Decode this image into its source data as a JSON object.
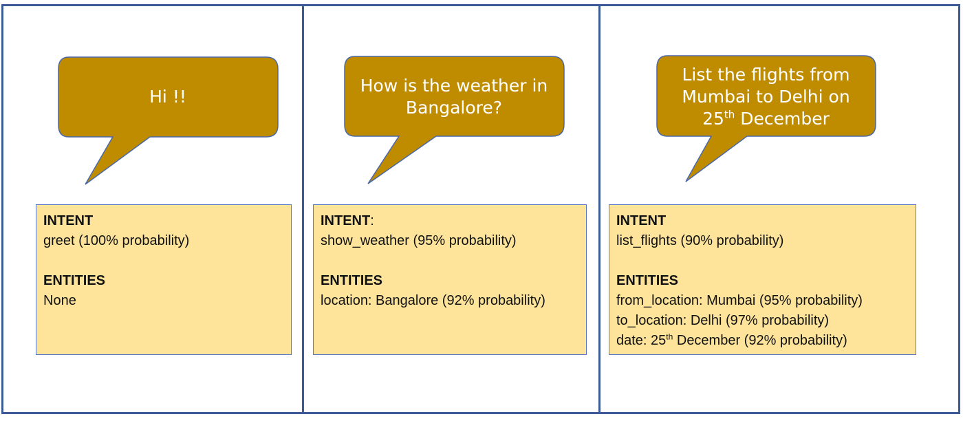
{
  "colors": {
    "panel_border": "#3c5a96",
    "bubble_fill": "#bf8c00",
    "bubble_stroke": "#4a67a8",
    "box_fill": "#fde49a",
    "box_border": "#5a78c8"
  },
  "panels": [
    {
      "bubble_lines": [
        "Hi !!"
      ],
      "intent_label": "INTENT",
      "intent_value": "greet (100% probability)",
      "entities_label": "ENTITIES",
      "entities": [
        "None"
      ]
    },
    {
      "bubble_lines": [
        "How is the weather in",
        "Bangalore?"
      ],
      "intent_label": "INTENT",
      "intent_suffix": ":",
      "intent_value": "show_weather (95% probability)",
      "entities_label": "ENTITIES",
      "entities": [
        "location: Bangalore (92% probability)"
      ]
    },
    {
      "bubble_lines": [
        "List the flights from",
        "Mumbai to Delhi on"
      ],
      "bubble_date_num": "25",
      "bubble_date_sup": "th",
      "bubble_date_rest": " December",
      "intent_label": "INTENT",
      "intent_value": "list_flights (90% probability)",
      "entities_label": "ENTITIES",
      "entities": [
        "from_location: Mumbai (95% probability)",
        "to_location: Delhi (97% probability)"
      ],
      "entity_date_prefix": "date: 25",
      "entity_date_sup": "th",
      "entity_date_rest": " December (92% probability)"
    }
  ]
}
